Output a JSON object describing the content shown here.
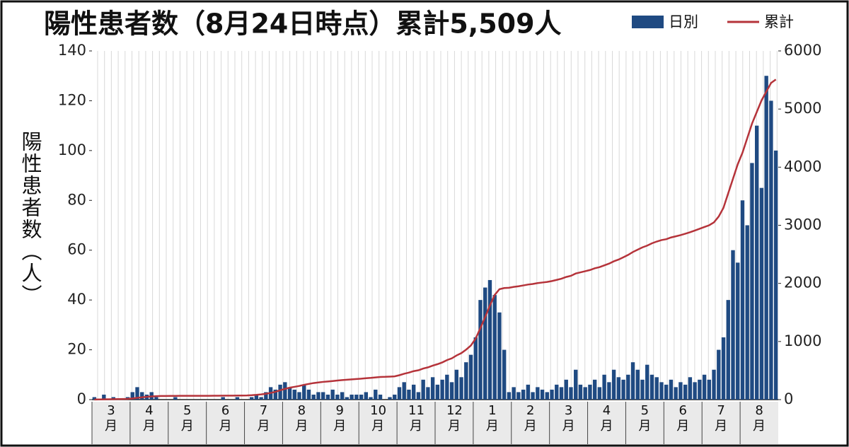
{
  "chart_data": {
    "type": "bar-line",
    "title": "陽性患者数（8月24日時点）累計5,509人",
    "y_label": "陽性患者数（人）",
    "categories": [
      "3月",
      "4月",
      "5月",
      "6月",
      "7月",
      "8月",
      "9月",
      "10月",
      "11月",
      "12月",
      "1月",
      "2月",
      "3月",
      "4月",
      "5月",
      "6月",
      "7月",
      "8月"
    ],
    "series": [
      {
        "name": "日別",
        "color": "#1f4a82",
        "values": [
          [
            1,
            0,
            2,
            0,
            1,
            0,
            0,
            1
          ],
          [
            3,
            5,
            3,
            2,
            3,
            1,
            0,
            0
          ],
          [
            0,
            1,
            0,
            0,
            0,
            0,
            0,
            0
          ],
          [
            0,
            0,
            0,
            1,
            0,
            0,
            1,
            0
          ],
          [
            0,
            1,
            2,
            1,
            3,
            5,
            4,
            6
          ],
          [
            7,
            5,
            4,
            3,
            6,
            4,
            2,
            3
          ],
          [
            3,
            2,
            4,
            2,
            3,
            1,
            2,
            2
          ],
          [
            2,
            3,
            1,
            4,
            2,
            0,
            1,
            2
          ],
          [
            5,
            7,
            4,
            6,
            3,
            8,
            5,
            9
          ],
          [
            6,
            8,
            10,
            7,
            12,
            9,
            15,
            18
          ],
          [
            25,
            40,
            45,
            48,
            42,
            35,
            20,
            3
          ],
          [
            5,
            3,
            4,
            6,
            3,
            5,
            4,
            3
          ],
          [
            4,
            6,
            5,
            8,
            5,
            12,
            6,
            5
          ],
          [
            6,
            8,
            5,
            10,
            7,
            12,
            9,
            8
          ],
          [
            10,
            15,
            12,
            8,
            14,
            10,
            9,
            7
          ],
          [
            6,
            8,
            5,
            7,
            6,
            9,
            7,
            8
          ],
          [
            10,
            8,
            12,
            20,
            25,
            40,
            60,
            55
          ],
          [
            80,
            70,
            95,
            110,
            85,
            130,
            120,
            100
          ]
        ]
      },
      {
        "name": "累計",
        "color": "#b5333a",
        "axis": "y2",
        "values": [
          [
            2,
            3,
            5,
            6,
            8,
            9,
            10,
            12
          ],
          [
            20,
            30,
            40,
            48,
            55,
            60,
            62,
            63
          ],
          [
            64,
            64,
            65,
            65,
            65,
            66,
            66,
            66
          ],
          [
            66,
            67,
            67,
            68,
            68,
            69,
            70,
            70
          ],
          [
            72,
            76,
            82,
            90,
            100,
            115,
            135,
            160
          ],
          [
            185,
            205,
            220,
            235,
            255,
            270,
            285,
            295
          ],
          [
            305,
            312,
            320,
            328,
            336,
            342,
            348,
            355
          ],
          [
            360,
            368,
            374,
            382,
            390,
            392,
            396,
            400
          ],
          [
            420,
            445,
            465,
            490,
            505,
            535,
            555,
            585
          ],
          [
            610,
            640,
            680,
            710,
            760,
            800,
            860,
            930
          ],
          [
            1050,
            1230,
            1420,
            1620,
            1800,
            1900,
            1920,
            1925
          ],
          [
            1940,
            1950,
            1965,
            1980,
            1990,
            2005,
            2015,
            2025
          ],
          [
            2040,
            2060,
            2080,
            2110,
            2130,
            2170,
            2190,
            2210
          ],
          [
            2230,
            2260,
            2280,
            2310,
            2340,
            2380,
            2410,
            2450
          ],
          [
            2490,
            2540,
            2580,
            2620,
            2650,
            2690,
            2720,
            2745
          ],
          [
            2760,
            2790,
            2810,
            2830,
            2855,
            2880,
            2910,
            2940
          ],
          [
            2970,
            3000,
            3050,
            3150,
            3300,
            3550,
            3800,
            4050
          ],
          [
            4250,
            4500,
            4750,
            4950,
            5150,
            5300,
            5450,
            5509
          ]
        ]
      }
    ],
    "ylim": [
      0,
      140
    ],
    "yticks": [
      0,
      20,
      40,
      60,
      80,
      100,
      120,
      140
    ],
    "y2lim": [
      0,
      6000
    ],
    "y2ticks": [
      0,
      1000,
      2000,
      3000,
      4000,
      5000,
      6000
    ],
    "grid": true
  }
}
